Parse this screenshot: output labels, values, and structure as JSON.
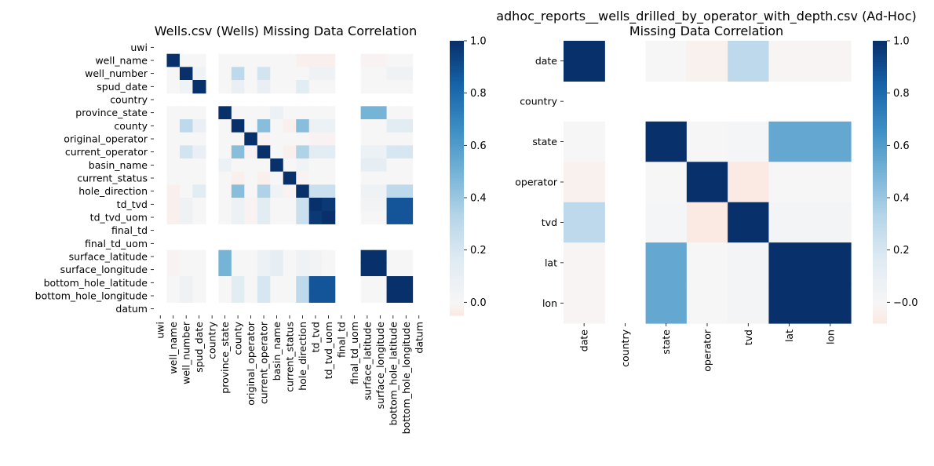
{
  "colors": {
    "neg_max": "#fbe8e1",
    "zero": "#f7f6f6",
    "pos_stops": [
      "#f7f6f6",
      "#dfebf3",
      "#b6d5e9",
      "#75b3d7",
      "#3d8ec4",
      "#1764aa",
      "#08306b"
    ]
  },
  "chart_data": [
    {
      "type": "heatmap",
      "title": "Wells.csv (Wells) Missing Data Correlation",
      "labels": [
        "uwi",
        "well_name",
        "well_number",
        "spud_date",
        "country",
        "province_state",
        "county",
        "original_operator",
        "current_operator",
        "basin_name",
        "current_status",
        "hole_direction",
        "td_tvd",
        "td_tvd_uom",
        "final_td",
        "final_td_uom",
        "surface_latitude",
        "surface_longitude",
        "bottom_hole_latitude",
        "bottom_hole_longitude",
        "datum"
      ],
      "empty_indices": [
        0,
        4,
        14,
        15,
        20
      ],
      "cells": [
        [
          1,
          1,
          1
        ],
        [
          2,
          2,
          1
        ],
        [
          3,
          3,
          1
        ],
        [
          5,
          5,
          1
        ],
        [
          6,
          6,
          1
        ],
        [
          7,
          7,
          1
        ],
        [
          8,
          8,
          1
        ],
        [
          9,
          9,
          1
        ],
        [
          10,
          10,
          1
        ],
        [
          11,
          11,
          1
        ],
        [
          12,
          12,
          1
        ],
        [
          13,
          13,
          1
        ],
        [
          16,
          16,
          1
        ],
        [
          17,
          17,
          1
        ],
        [
          18,
          18,
          1
        ],
        [
          19,
          19,
          1
        ],
        [
          12,
          13,
          0.97
        ],
        [
          13,
          12,
          0.97
        ],
        [
          16,
          17,
          1
        ],
        [
          17,
          16,
          1
        ],
        [
          18,
          19,
          1
        ],
        [
          19,
          18,
          1
        ],
        [
          12,
          18,
          0.88
        ],
        [
          18,
          12,
          0.88
        ],
        [
          12,
          19,
          0.88
        ],
        [
          19,
          12,
          0.88
        ],
        [
          13,
          18,
          0.88
        ],
        [
          18,
          13,
          0.88
        ],
        [
          13,
          19,
          0.88
        ],
        [
          19,
          13,
          0.88
        ],
        [
          5,
          16,
          0.5
        ],
        [
          16,
          5,
          0.5
        ],
        [
          5,
          17,
          0.5
        ],
        [
          17,
          5,
          0.5
        ],
        [
          6,
          8,
          0.45
        ],
        [
          8,
          6,
          0.45
        ],
        [
          6,
          11,
          0.45
        ],
        [
          11,
          6,
          0.45
        ],
        [
          2,
          6,
          0.3
        ],
        [
          6,
          2,
          0.3
        ],
        [
          8,
          11,
          0.35
        ],
        [
          11,
          8,
          0.35
        ],
        [
          2,
          8,
          0.22
        ],
        [
          8,
          2,
          0.22
        ],
        [
          6,
          18,
          0.15
        ],
        [
          18,
          6,
          0.15
        ],
        [
          6,
          19,
          0.15
        ],
        [
          19,
          6,
          0.15
        ],
        [
          3,
          11,
          0.15
        ],
        [
          11,
          3,
          0.15
        ],
        [
          11,
          12,
          0.25
        ],
        [
          12,
          11,
          0.25
        ],
        [
          11,
          13,
          0.25
        ],
        [
          13,
          11,
          0.25
        ],
        [
          11,
          18,
          0.3
        ],
        [
          18,
          11,
          0.3
        ],
        [
          11,
          19,
          0.3
        ],
        [
          19,
          11,
          0.3
        ],
        [
          8,
          12,
          0.15
        ],
        [
          12,
          8,
          0.15
        ],
        [
          8,
          13,
          0.15
        ],
        [
          13,
          8,
          0.15
        ],
        [
          8,
          18,
          0.2
        ],
        [
          18,
          8,
          0.2
        ],
        [
          8,
          19,
          0.2
        ],
        [
          19,
          8,
          0.2
        ],
        [
          3,
          6,
          0.1
        ],
        [
          6,
          3,
          0.1
        ],
        [
          3,
          8,
          0.1
        ],
        [
          8,
          3,
          0.1
        ],
        [
          9,
          16,
          0.12
        ],
        [
          16,
          9,
          0.12
        ],
        [
          9,
          17,
          0.12
        ],
        [
          17,
          9,
          0.12
        ],
        [
          6,
          12,
          0.08
        ],
        [
          12,
          6,
          0.08
        ],
        [
          6,
          13,
          0.08
        ],
        [
          13,
          6,
          0.08
        ],
        [
          11,
          16,
          0.06
        ],
        [
          16,
          11,
          0.06
        ],
        [
          11,
          17,
          0.06
        ],
        [
          17,
          11,
          0.06
        ],
        [
          2,
          12,
          0.06
        ],
        [
          12,
          2,
          0.06
        ],
        [
          2,
          13,
          0.06
        ],
        [
          13,
          2,
          0.06
        ],
        [
          2,
          18,
          0.06
        ],
        [
          18,
          2,
          0.06
        ],
        [
          2,
          19,
          0.06
        ],
        [
          19,
          2,
          0.06
        ],
        [
          8,
          16,
          0.08
        ],
        [
          16,
          8,
          0.08
        ],
        [
          8,
          17,
          0.08
        ],
        [
          17,
          8,
          0.08
        ],
        [
          5,
          9,
          0.08
        ],
        [
          9,
          5,
          0.08
        ],
        [
          9,
          11,
          0.05
        ],
        [
          11,
          9,
          0.05
        ],
        [
          3,
          2,
          0.05
        ],
        [
          2,
          3,
          0.05
        ],
        [
          12,
          16,
          0.04
        ],
        [
          16,
          12,
          0.04
        ],
        [
          12,
          17,
          0.04
        ],
        [
          17,
          12,
          0.04
        ],
        [
          1,
          11,
          -0.02
        ],
        [
          11,
          1,
          -0.02
        ],
        [
          1,
          12,
          -0.02
        ],
        [
          12,
          1,
          -0.02
        ],
        [
          1,
          13,
          -0.02
        ],
        [
          13,
          1,
          -0.02
        ],
        [
          7,
          8,
          -0.01
        ],
        [
          8,
          7,
          -0.01
        ],
        [
          7,
          12,
          -0.01
        ],
        [
          12,
          7,
          -0.01
        ],
        [
          7,
          13,
          -0.01
        ],
        [
          13,
          7,
          -0.01
        ],
        [
          10,
          6,
          -0.02
        ],
        [
          6,
          10,
          -0.02
        ],
        [
          10,
          8,
          -0.02
        ],
        [
          8,
          10,
          -0.02
        ],
        [
          10,
          11,
          -0.01
        ],
        [
          11,
          10,
          -0.01
        ],
        [
          1,
          16,
          -0.01
        ],
        [
          16,
          1,
          -0.01
        ],
        [
          1,
          17,
          -0.01
        ],
        [
          17,
          1,
          -0.01
        ]
      ],
      "colorbar": {
        "min": -0.05,
        "max": 1.0,
        "ticks": [
          0.0,
          0.2,
          0.4,
          0.6,
          0.8,
          1.0
        ],
        "tick_labels": [
          "0.0",
          "0.2",
          "0.4",
          "0.6",
          "0.8",
          "1.0"
        ]
      }
    },
    {
      "type": "heatmap",
      "title": "adhoc_reports__wells_drilled_by_operator_with_depth.csv (Ad-Hoc)",
      "title_line2": "Missing Data Correlation",
      "labels": [
        "date",
        "country",
        "state",
        "operator",
        "tvd",
        "lat",
        "lon"
      ],
      "empty_indices": [
        1
      ],
      "cells": [
        [
          0,
          0,
          1
        ],
        [
          0,
          2,
          0.0
        ],
        [
          0,
          3,
          -0.03
        ],
        [
          0,
          4,
          0.3
        ],
        [
          0,
          5,
          -0.01
        ],
        [
          0,
          6,
          -0.01
        ],
        [
          2,
          0,
          0.0
        ],
        [
          2,
          2,
          1
        ],
        [
          2,
          3,
          0.0
        ],
        [
          2,
          4,
          0.02
        ],
        [
          2,
          5,
          0.55
        ],
        [
          2,
          6,
          0.55
        ],
        [
          3,
          0,
          -0.03
        ],
        [
          3,
          2,
          0.0
        ],
        [
          3,
          3,
          1
        ],
        [
          3,
          4,
          -0.07
        ],
        [
          3,
          5,
          0.0
        ],
        [
          3,
          6,
          0.0
        ],
        [
          4,
          0,
          0.3
        ],
        [
          4,
          2,
          0.02
        ],
        [
          4,
          3,
          -0.07
        ],
        [
          4,
          4,
          1
        ],
        [
          4,
          5,
          0.03
        ],
        [
          4,
          6,
          0.03
        ],
        [
          5,
          0,
          -0.01
        ],
        [
          5,
          2,
          0.55
        ],
        [
          5,
          3,
          0.0
        ],
        [
          5,
          4,
          0.03
        ],
        [
          5,
          5,
          1
        ],
        [
          5,
          6,
          1
        ],
        [
          6,
          0,
          -0.01
        ],
        [
          6,
          2,
          0.55
        ],
        [
          6,
          3,
          0.0
        ],
        [
          6,
          4,
          0.03
        ],
        [
          6,
          5,
          1
        ],
        [
          6,
          6,
          1
        ]
      ],
      "colorbar": {
        "min": -0.08,
        "max": 1.0,
        "ticks": [
          0.0,
          0.2,
          0.4,
          0.6,
          0.8,
          1.0
        ],
        "tick_labels": [
          "−0.0",
          "0.2",
          "0.4",
          "0.6",
          "0.8",
          "1.0"
        ]
      }
    }
  ]
}
